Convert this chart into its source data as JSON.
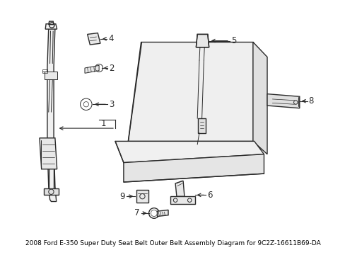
{
  "background_color": "#ffffff",
  "line_color": "#2a2a2a",
  "figsize": [
    4.89,
    3.6
  ],
  "dpi": 100,
  "title": "2008 Ford E-350 Super Duty Seat Belt Outer Belt Assembly Diagram for 9C2Z-16611B69-DA",
  "title_fontsize": 6.5,
  "label_fontsize": 8.5
}
